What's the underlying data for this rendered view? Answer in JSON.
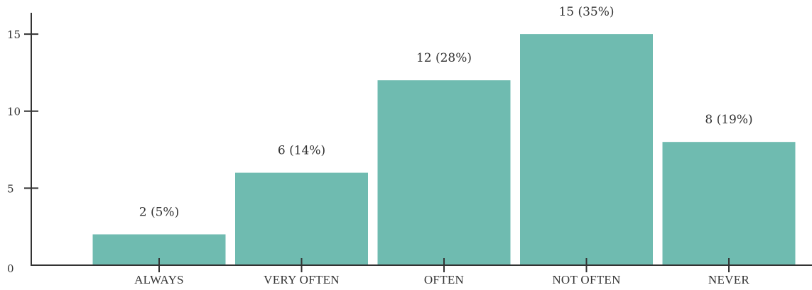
{
  "chart_data": {
    "type": "bar",
    "title": "",
    "xlabel": "",
    "ylabel": "",
    "categories": [
      "ALWAYS",
      "VERY OFTEN",
      "OFTEN",
      "NOT OFTEN",
      "NEVER"
    ],
    "values": [
      2,
      6,
      12,
      15,
      8
    ],
    "data_labels": [
      "2 (5%)",
      "6 (14%)",
      "12 (28%)",
      "15 (35%)",
      "8 (19%)"
    ],
    "ylim": [
      0,
      16
    ],
    "y_ticks": [
      0,
      5,
      10,
      15
    ],
    "grid": false,
    "legend": "none",
    "bar_color": "#6fbbb0",
    "axis_color": "#333333",
    "text_color": "#333333"
  }
}
